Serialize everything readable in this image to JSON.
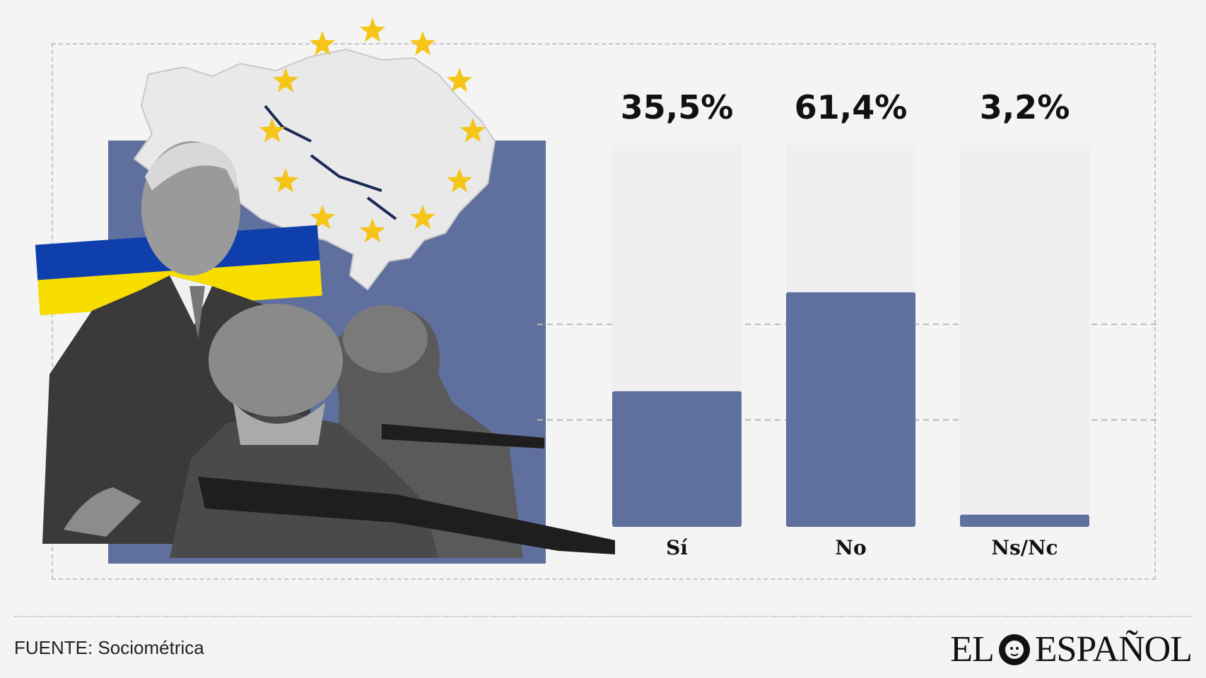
{
  "chart_data": {
    "type": "bar",
    "categories": [
      "Sí",
      "No",
      "Ns/Nc"
    ],
    "values": [
      35.5,
      61.4,
      3.2
    ],
    "value_labels": [
      "35,5%",
      "61,4%",
      "3,2%"
    ],
    "ylim": [
      0,
      100
    ],
    "grid": true,
    "colors": {
      "fill": "#5f6f9e",
      "track": "#efefef"
    }
  },
  "footer": {
    "source": "FUENTE: Sociométrica",
    "logo_left": "EL",
    "logo_right": "ESPAÑOL"
  },
  "illustration": {
    "icons": [
      "eu-star-icon",
      "ukraine-map-icon",
      "ukraine-flag-icon",
      "politician-photo",
      "soldiers-photo"
    ],
    "colors": {
      "map_background": "#5f6f9e",
      "star": "#f5c518",
      "flag_blue": "#0f3fad",
      "flag_yellow": "#f7dd00"
    }
  }
}
